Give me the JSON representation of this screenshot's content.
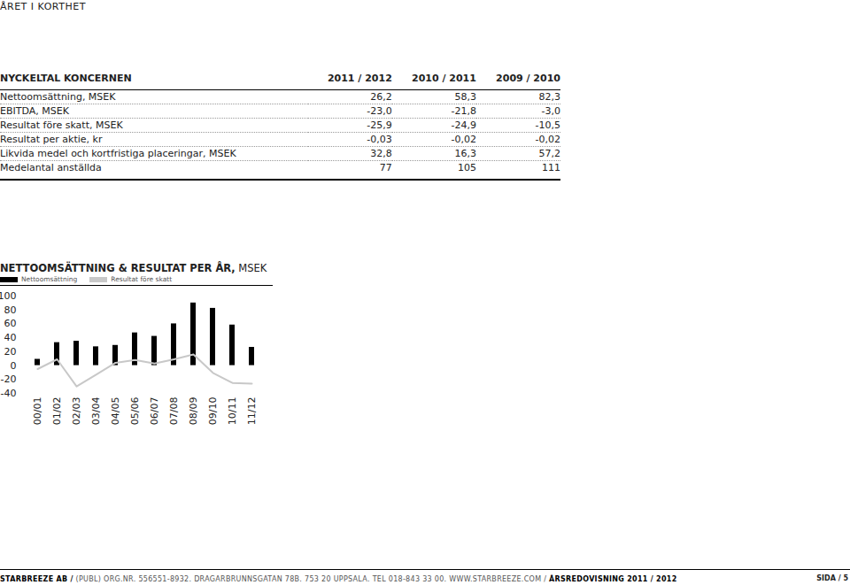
{
  "header": {
    "title": "ÅRET I KORTHET"
  },
  "table": {
    "title": "NYCKELTAL KONCERNEN",
    "columns": [
      "2011 / 2012",
      "2010 / 2011",
      "2009 / 2010"
    ],
    "rows": [
      [
        "Nettoomsättning, MSEK",
        "26,2",
        "58,3",
        "82,3"
      ],
      [
        "EBITDA, MSEK",
        "-23,0",
        "-21,8",
        "-3,0"
      ],
      [
        "Resultat före skatt, MSEK",
        "-25,9",
        "-24,9",
        "-10,5"
      ],
      [
        "Resultat per aktie, kr",
        "-0,03",
        "-0,02",
        "-0,02"
      ],
      [
        "Likvida medel och kortfristiga placeringar, MSEK",
        "32,8",
        "16,3",
        "57,2"
      ],
      [
        "Medelantal anställda",
        "77",
        "105",
        "111"
      ]
    ]
  },
  "chart_data": {
    "type": "bar",
    "title": "NETTOOMSÄTTNING & RESULTAT PER ÅR,",
    "subtitle": "MSEK",
    "categories": [
      "00/01",
      "01/02",
      "02/03",
      "03/04",
      "04/05",
      "05/06",
      "06/07",
      "07/08",
      "08/09",
      "09/10",
      "10/11",
      "11/12"
    ],
    "series": [
      {
        "name": "Nettoomsättning",
        "type": "bar",
        "color": "#000000",
        "values": [
          9,
          33,
          35,
          27,
          29,
          47,
          42,
          60,
          90,
          82.3,
          58.3,
          26.2
        ]
      },
      {
        "name": "Resultat före skatt",
        "type": "line",
        "color": "#c8c8c8",
        "values": [
          -5,
          9,
          -30,
          -13,
          4,
          8,
          3,
          9,
          16,
          -10.5,
          -24.9,
          -25.9
        ]
      }
    ],
    "ylim": [
      -40,
      100
    ],
    "yticks": [
      100,
      80,
      60,
      40,
      20,
      0,
      -20,
      -40
    ],
    "grid": false,
    "legend": "top-left"
  },
  "footer": {
    "company": "STARBREEZE AB /",
    "address": "(PUBL) ORG.NR. 556551-8932. DRAGARBRUNNSGATAN 78B. 753 20 UPPSALA. TEL 018-843 33 00. WWW.STARBREEZE.COM /",
    "report": "ÅRSREDOVISNING 2011 / 2012",
    "page": "SIDA / 5"
  }
}
